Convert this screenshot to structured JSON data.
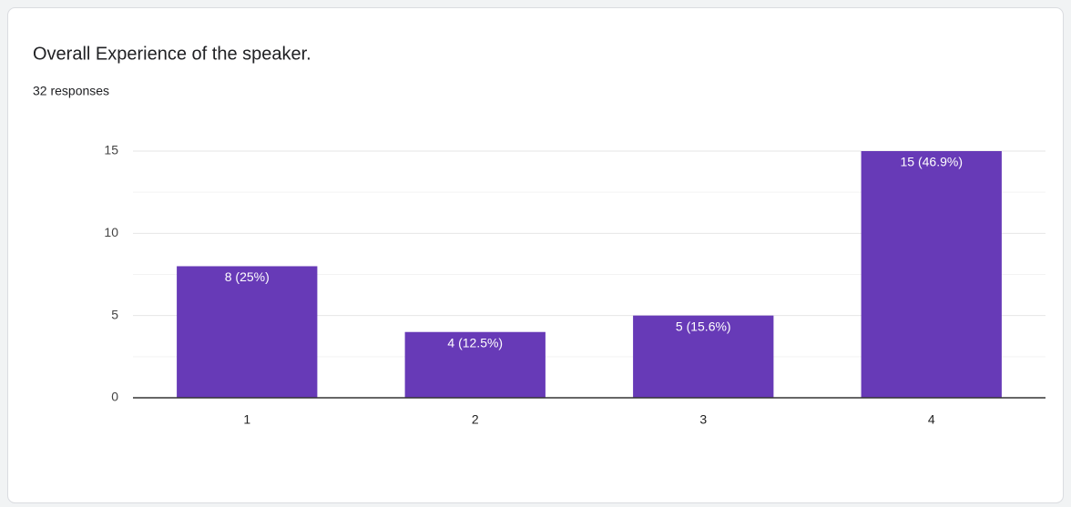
{
  "chart_data": {
    "type": "bar",
    "title": "Overall Experience of the speaker.",
    "subtitle": "32 responses",
    "categories": [
      "1",
      "2",
      "3",
      "4"
    ],
    "values": [
      8,
      4,
      5,
      15
    ],
    "value_labels": [
      "8 (25%)",
      "4 (12.5%)",
      "5 (15.6%)",
      "15 (46.9%)"
    ],
    "color": "#673ab7",
    "ylim": [
      0,
      15
    ],
    "yticks": [
      0,
      5,
      10,
      15
    ],
    "minor_yticks": [
      2.5,
      7.5,
      12.5
    ],
    "grid": true
  }
}
